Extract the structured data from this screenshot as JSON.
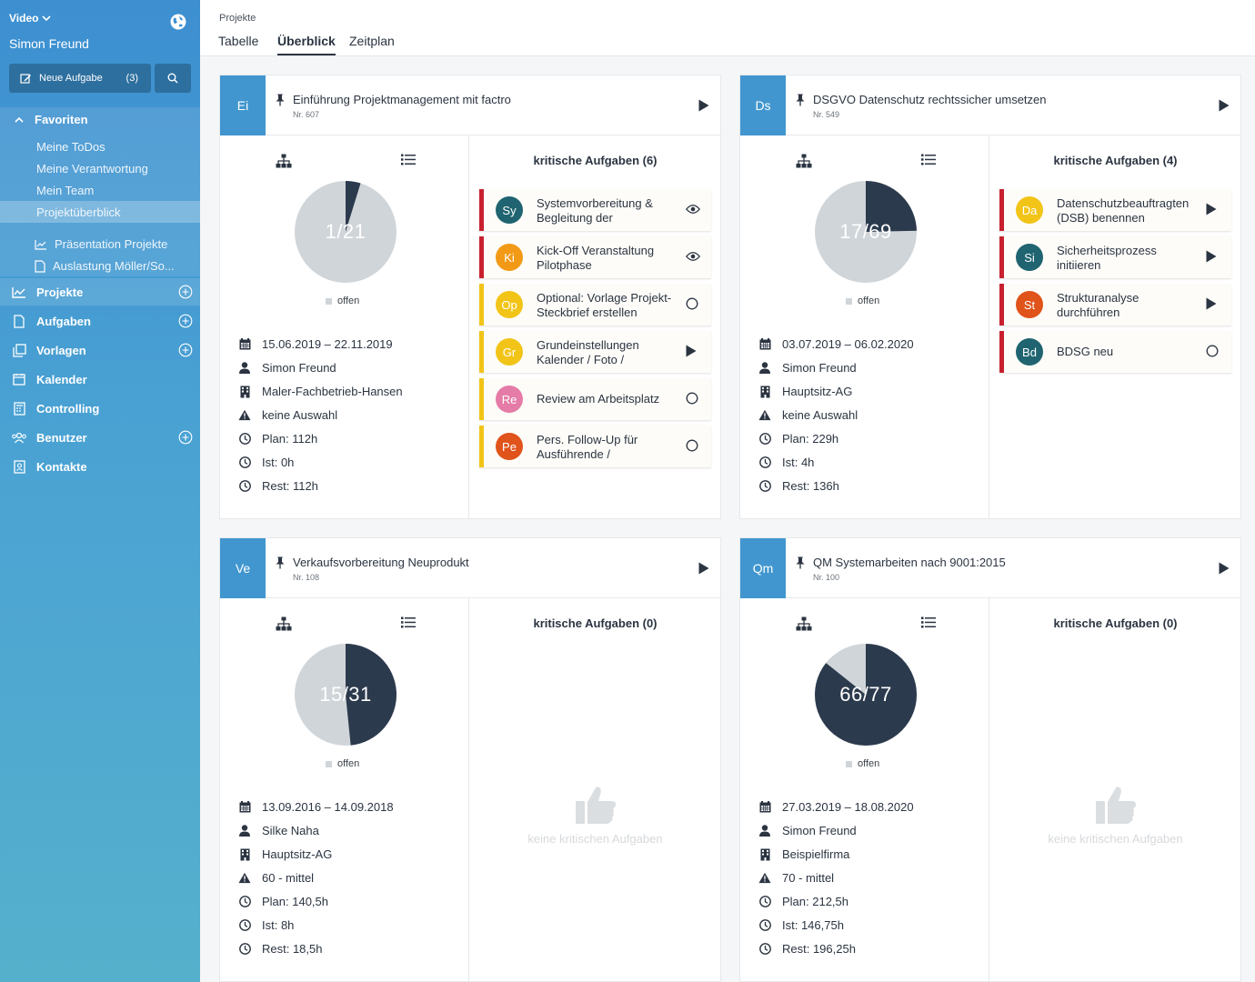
{
  "sidebar": {
    "workspace": "Video",
    "user": "Simon Freund",
    "new_task_label": "Neue Aufgabe",
    "new_task_count": "(3)",
    "favorites": {
      "label": "Favoriten",
      "items": [
        "Meine ToDos",
        "Meine Verantwortung",
        "Mein Team",
        "Projektüberblick"
      ],
      "links": [
        "Präsentation Projekte",
        "Auslastung Möller/So..."
      ]
    },
    "nav": [
      "Projekte",
      "Aufgaben",
      "Vorlagen",
      "Kalender",
      "Controlling",
      "Benutzer",
      "Kontakte"
    ]
  },
  "header": {
    "breadcrumb": "Projekte",
    "tabs": [
      "Tabelle",
      "Überblick",
      "Zeitplan"
    ],
    "active_tab": "Überblick"
  },
  "colors": {
    "accent": "#4196cf",
    "pie_done": "#2c3a4d",
    "pie_open": "#d0d5d9",
    "critical": "#c8202f",
    "warning": "#f2c418"
  },
  "legend_open": "offen",
  "projects": [
    {
      "badge": "Ei",
      "title": "Einführung Projektmanagement mit factro",
      "nr": "Nr. 607",
      "progress_label": "1/21",
      "progress": {
        "done": 1,
        "total": 21
      },
      "dates": "15.06.2019 – 22.11.2019",
      "owner": "Simon Freund",
      "company": "Maler-Fachbetrieb-Hansen",
      "priority": "keine Auswahl",
      "plan": "Plan: 112h",
      "ist": "Ist: 0h",
      "rest": "Rest: 112h",
      "critical_title": "kritische Aufgaben (6)",
      "tasks": [
        {
          "initials": "Sy",
          "color": "#1f6470",
          "text": "Systemvorbereitung & Begleitung der",
          "type": "critical",
          "action": "eye-icon"
        },
        {
          "initials": "Ki",
          "color": "#f29a16",
          "text": "Kick-Off Veranstaltung Pilotphase",
          "type": "critical",
          "action": "eye-icon"
        },
        {
          "initials": "Op",
          "color": "#f2c418",
          "text": "Optional: Vorlage Projekt-Steckbrief erstellen",
          "type": "warn",
          "action": "circle-icon"
        },
        {
          "initials": "Gr",
          "color": "#f2c418",
          "text": "Grundeinstellungen Kalender / Foto /",
          "type": "warn",
          "action": "play-icon"
        },
        {
          "initials": "Re",
          "color": "#e57ba7",
          "text": "Review am Arbeitsplatz",
          "type": "warn",
          "action": "circle-icon"
        },
        {
          "initials": "Pe",
          "color": "#e0531a",
          "text": "Pers. Follow-Up für Ausführende /",
          "type": "warn",
          "action": "circle-icon"
        }
      ]
    },
    {
      "badge": "Ds",
      "title": "DSGVO Datenschutz rechtssicher umsetzen",
      "nr": "Nr. 549",
      "progress_label": "17/69",
      "progress": {
        "done": 17,
        "total": 69
      },
      "dates": "03.07.2019 – 06.02.2020",
      "owner": "Simon Freund",
      "company": "Hauptsitz-AG",
      "priority": "keine Auswahl",
      "plan": "Plan: 229h",
      "ist": "Ist: 4h",
      "rest": "Rest: 136h",
      "critical_title": "kritische Aufgaben (4)",
      "tasks": [
        {
          "initials": "Da",
          "color": "#f2c418",
          "text": "Datenschutzbeauftragten (DSB) benennen",
          "type": "critical",
          "action": "play-icon"
        },
        {
          "initials": "Si",
          "color": "#1f6470",
          "text": "Sicherheitsprozess initiieren",
          "type": "critical",
          "action": "play-icon"
        },
        {
          "initials": "St",
          "color": "#e0531a",
          "text": "Strukturanalyse durchführen",
          "type": "critical",
          "action": "play-icon"
        },
        {
          "initials": "Bd",
          "color": "#1f6470",
          "text": "BDSG neu",
          "type": "critical",
          "action": "circle-icon"
        }
      ]
    },
    {
      "badge": "Ve",
      "title": "Verkaufsvorbereitung Neuprodukt",
      "nr": "Nr. 108",
      "progress_label": "15/31",
      "progress": {
        "done": 15,
        "total": 31
      },
      "dates": "13.09.2016 – 14.09.2018",
      "owner": "Silke Naha",
      "company": "Hauptsitz-AG",
      "priority": "60 - mittel",
      "plan": "Plan: 140,5h",
      "ist": "Ist: 8h",
      "rest": "Rest: 18,5h",
      "critical_title": "kritische Aufgaben (0)",
      "empty_text": "keine kritischen Aufgaben",
      "tasks": []
    },
    {
      "badge": "Qm",
      "title": "QM Systemarbeiten nach 9001:2015",
      "nr": "Nr. 100",
      "progress_label": "66/77",
      "progress": {
        "done": 66,
        "total": 77
      },
      "dates": "27.03.2019 – 18.08.2020",
      "owner": "Simon Freund",
      "company": "Beispielfirma",
      "priority": "70 - mittel",
      "plan": "Plan: 212,5h",
      "ist": "Ist: 146,75h",
      "rest": "Rest: 196,25h",
      "critical_title": "kritische Aufgaben (0)",
      "empty_text": "keine kritischen Aufgaben",
      "tasks": []
    }
  ]
}
